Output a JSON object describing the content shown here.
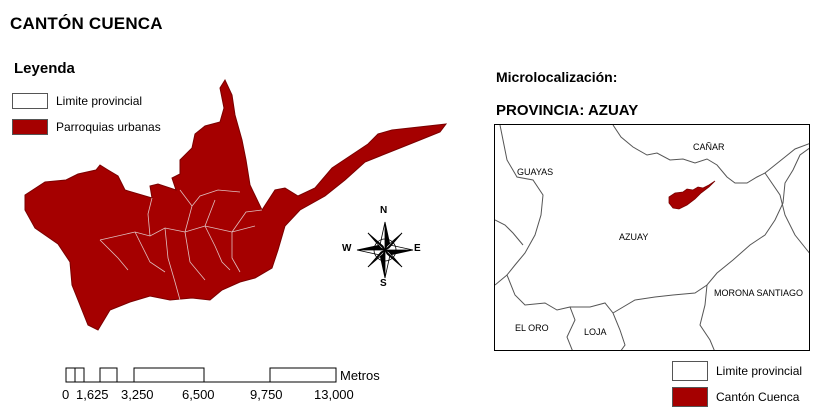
{
  "title": "CANTÓN CUENCA",
  "legend": {
    "title": "Leyenda",
    "items": [
      {
        "label": "Limite provincial",
        "fill": "#ffffff"
      },
      {
        "label": "Parroquias urbanas",
        "fill": "#a50000"
      }
    ]
  },
  "compass": {
    "n": "N",
    "s": "S",
    "e": "E",
    "w": "W"
  },
  "scale_bar": {
    "unit": "Metros",
    "ticks": [
      "0",
      "1,625",
      "3,250",
      "6,500",
      "9,750",
      "13,000"
    ]
  },
  "micro": {
    "title": "Microlocalización:",
    "province_title": "PROVINCIA: AZUAY",
    "labels": {
      "guayas": "GUAYAS",
      "canar": "CAÑAR",
      "azuay": "AZUAY",
      "morona": "MORONA SANTIAGO",
      "el_oro": "EL ORO",
      "loja": "LOJA"
    },
    "legend": [
      {
        "label": "Limite provincial",
        "fill": "#ffffff"
      },
      {
        "label": "Cantón Cuenca",
        "fill": "#a50000"
      }
    ]
  },
  "colors": {
    "urban_fill": "#a50000",
    "boundary_line": "#555555"
  }
}
